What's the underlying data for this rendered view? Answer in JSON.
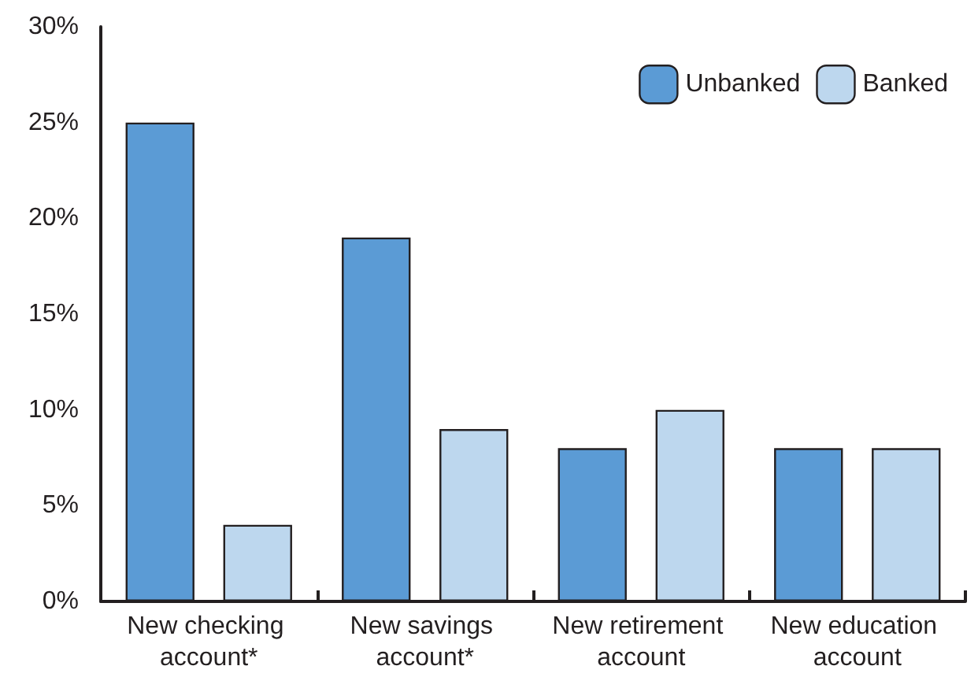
{
  "chart_data": {
    "type": "bar",
    "categories": [
      "New checking account*",
      "New savings account*",
      "New retirement account",
      "New education account"
    ],
    "series": [
      {
        "name": "Unbanked",
        "color": "#5b9bd5",
        "values": [
          25,
          19,
          8,
          8
        ]
      },
      {
        "name": "Banked",
        "color": "#bdd7ee",
        "values": [
          4,
          9,
          10,
          8
        ]
      }
    ],
    "ylim": [
      0,
      30
    ],
    "yticks": [
      {
        "value": 0,
        "label": "0%"
      },
      {
        "value": 5,
        "label": "5%"
      },
      {
        "value": 10,
        "label": "10%"
      },
      {
        "value": 15,
        "label": "15%"
      },
      {
        "value": 20,
        "label": "20%"
      },
      {
        "value": 25,
        "label": "25%"
      },
      {
        "value": 30,
        "label": "30%"
      }
    ],
    "grid": false,
    "legend": "top right"
  }
}
